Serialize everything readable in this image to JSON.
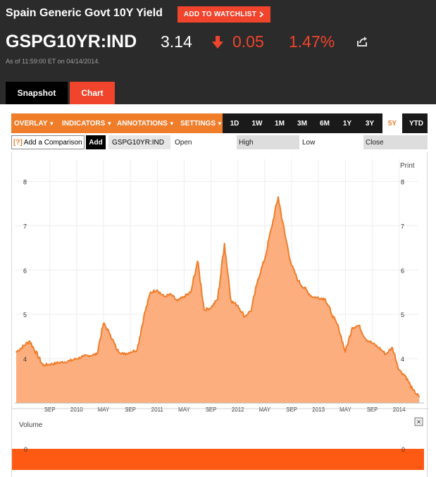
{
  "header": {
    "security_name": "Spain Generic Govt 10Y Yield",
    "watchlist_label": "ADD TO WATCHLIST",
    "ticker": "GSPG10YR:IND",
    "price": "3.14",
    "change": "0.05",
    "change_pct": "1.47%",
    "as_of": "As of 11:59:00 ET on 04/14/2014.",
    "accent_color": "#f0442c"
  },
  "tabs": [
    {
      "label": "Snapshot",
      "active": false
    },
    {
      "label": "Chart",
      "active": true
    }
  ],
  "toolbar": {
    "menus": [
      "OVERLAY",
      "INDICATORS",
      "ANNOTATIONS",
      "SETTINGS"
    ],
    "ranges": [
      "1D",
      "1W",
      "1M",
      "3M",
      "6M",
      "1Y",
      "3Y",
      "5Y",
      "YTD"
    ],
    "active_range": "5Y"
  },
  "comparison": {
    "placeholder": "Add a Comparison",
    "help_glyph": "[?]",
    "add_label": "Add",
    "symbol": "GSPG10YR:IND",
    "open_label": "Open",
    "high_label": "High",
    "low_label": "Low",
    "close_label": "Close"
  },
  "print_label": "Print",
  "volume_label": "Volume",
  "volume_close_glyph": "×",
  "chart_data": {
    "type": "area",
    "title": "",
    "series_color": "#f07d2a",
    "fill_color": "#fcae7f",
    "ylim": [
      3.0,
      8.5
    ],
    "y_ticks": [
      4,
      5,
      6,
      7,
      8
    ],
    "x_ticks": [
      "SEP",
      "2010",
      "MAY",
      "SEP",
      "2011",
      "MAY",
      "SEP",
      "2012",
      "MAY",
      "SEP",
      "2013",
      "MAY",
      "SEP",
      "2014"
    ],
    "x": [
      "2009-04",
      "2009-06",
      "2009-08",
      "2009-10",
      "2009-12",
      "2010-02",
      "2010-04",
      "2010-05",
      "2010-06",
      "2010-07",
      "2010-08",
      "2010-09",
      "2010-10",
      "2010-11",
      "2010-12",
      "2011-01",
      "2011-02",
      "2011-03",
      "2011-04",
      "2011-05",
      "2011-06",
      "2011-07",
      "2011-08",
      "2011-09",
      "2011-10",
      "2011-11",
      "2011-12",
      "2012-01",
      "2012-02",
      "2012-03",
      "2012-04",
      "2012-05",
      "2012-06",
      "2012-07",
      "2012-08",
      "2012-09",
      "2012-10",
      "2012-12",
      "2013-02",
      "2013-03",
      "2013-04",
      "2013-05",
      "2013-06",
      "2013-07",
      "2013-08",
      "2013-09",
      "2013-10",
      "2013-11",
      "2013-12",
      "2014-01",
      "2014-02",
      "2014-03",
      "2014-04"
    ],
    "values": [
      4.15,
      4.4,
      3.85,
      3.9,
      3.95,
      4.05,
      4.1,
      4.8,
      4.55,
      4.2,
      4.1,
      4.15,
      4.2,
      4.95,
      5.5,
      5.55,
      5.4,
      5.45,
      5.3,
      5.4,
      5.5,
      6.2,
      5.1,
      5.15,
      5.35,
      6.6,
      5.3,
      5.2,
      4.95,
      5.1,
      5.8,
      6.25,
      6.95,
      7.65,
      6.8,
      6.1,
      5.75,
      5.4,
      5.35,
      5.0,
      4.7,
      4.15,
      4.7,
      4.75,
      4.45,
      4.35,
      4.25,
      4.1,
      4.25,
      3.75,
      3.6,
      3.3,
      3.14
    ],
    "volume_y_tick": "0"
  }
}
